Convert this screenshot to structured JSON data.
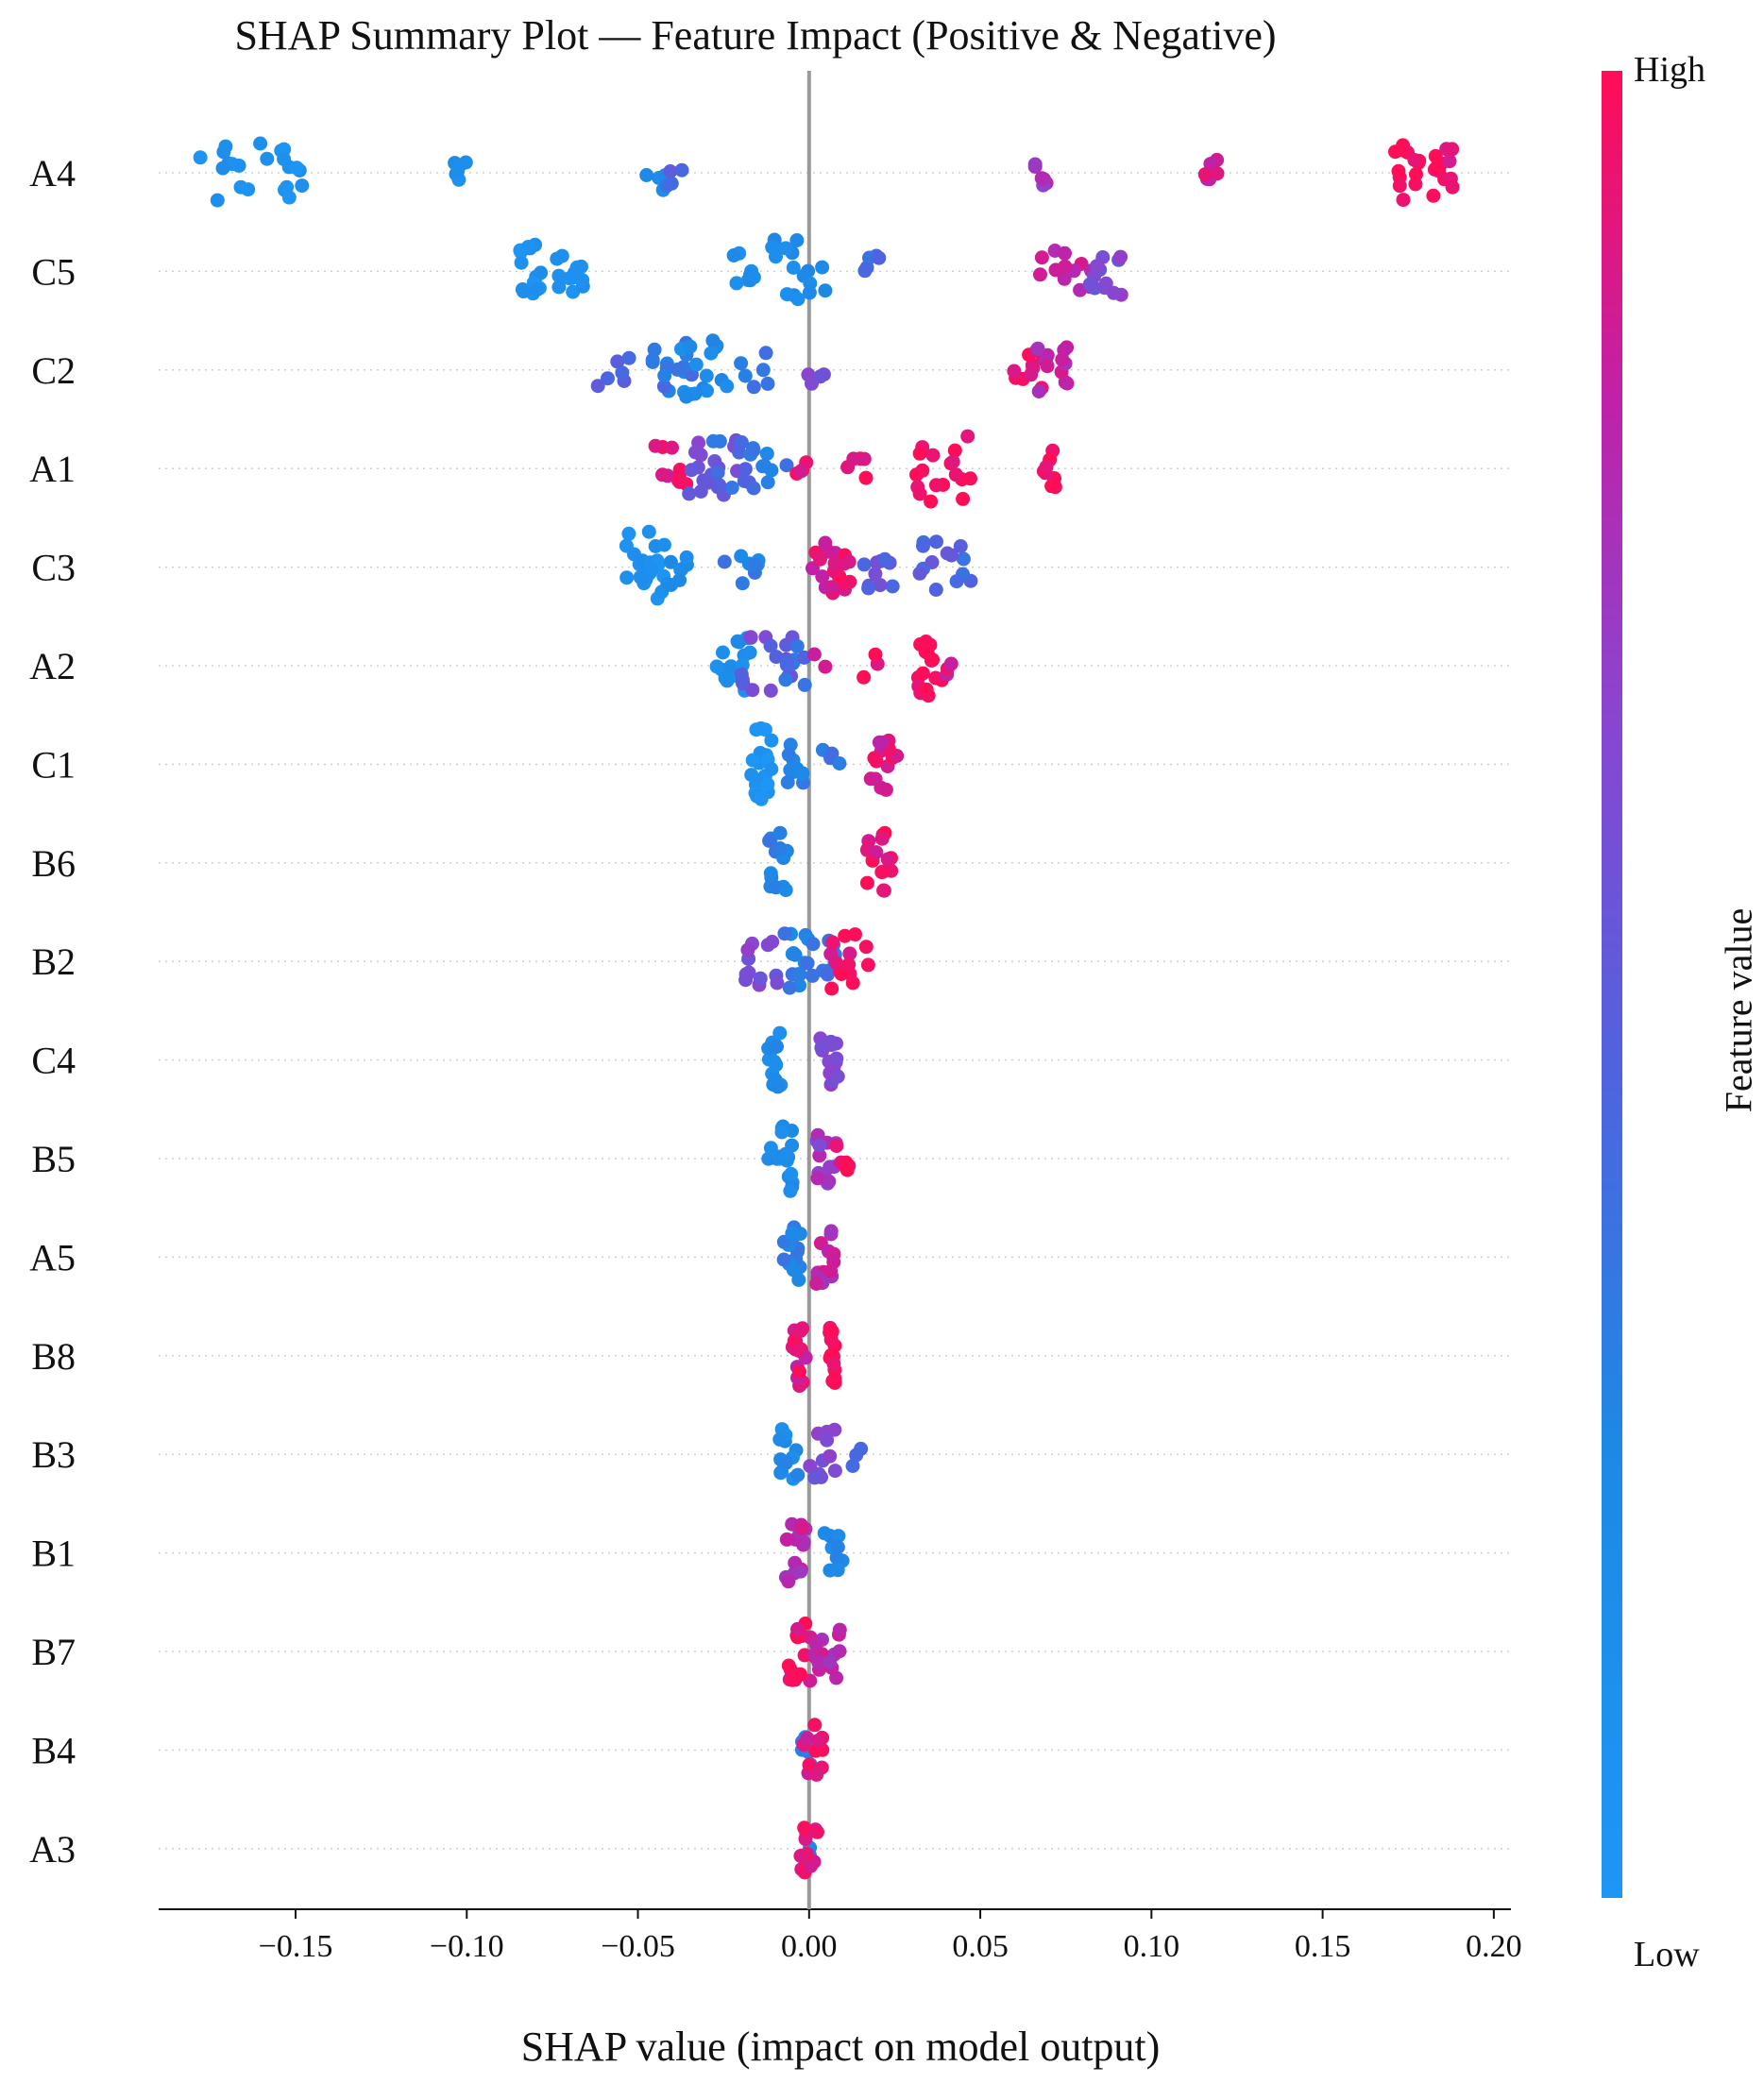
{
  "chart_data": {
    "type": "scatter",
    "subtype": "shap-beeswarm",
    "title": "SHAP Summary Plot — Feature Impact (Positive & Negative)",
    "xlabel": "SHAP value (impact on model output)",
    "xlim": [
      -0.19,
      0.205
    ],
    "xticks": [
      -0.15,
      -0.1,
      -0.05,
      0.0,
      0.05,
      0.1,
      0.15,
      0.2
    ],
    "xtick_labels": [
      "−0.15",
      "−0.10",
      "−0.05",
      "0.00",
      "0.05",
      "0.10",
      "0.15",
      "0.20"
    ],
    "colorbar": {
      "title": "Feature value",
      "high_label": "High",
      "low_label": "Low",
      "low_color": "#1e88e5",
      "mid_color": "#7b4fd6",
      "high_color": "#ff0d57"
    },
    "features": [
      {
        "name": "A4",
        "clusters": [
          [
            -0.163,
            0.1,
            22,
            0.015
          ],
          [
            -0.103,
            0.15,
            6,
            0.003
          ],
          [
            -0.045,
            0.2,
            6,
            0.004
          ],
          [
            -0.039,
            0.45,
            4,
            0.003
          ],
          [
            0.068,
            0.7,
            6,
            0.002
          ],
          [
            0.118,
            0.85,
            6,
            0.003
          ],
          [
            0.175,
            1.0,
            14,
            0.005
          ],
          [
            0.184,
            0.95,
            12,
            0.004
          ]
        ]
      },
      {
        "name": "C5",
        "clusters": [
          [
            -0.082,
            0.1,
            14,
            0.004
          ],
          [
            -0.07,
            0.1,
            12,
            0.004
          ],
          [
            -0.019,
            0.15,
            8,
            0.003
          ],
          [
            -0.003,
            0.2,
            18,
            0.008
          ],
          [
            0.018,
            0.45,
            5,
            0.003
          ],
          [
            0.075,
            0.8,
            12,
            0.008
          ],
          [
            0.087,
            0.6,
            12,
            0.005
          ]
        ]
      },
      {
        "name": "C2",
        "clusters": [
          [
            -0.057,
            0.5,
            6,
            0.005
          ],
          [
            -0.04,
            0.35,
            14,
            0.006
          ],
          [
            -0.032,
            0.2,
            16,
            0.008
          ],
          [
            -0.016,
            0.3,
            6,
            0.004
          ],
          [
            0.002,
            0.6,
            4,
            0.003
          ],
          [
            0.064,
            0.9,
            10,
            0.005
          ],
          [
            0.071,
            0.8,
            12,
            0.005
          ]
        ]
      },
      {
        "name": "A1",
        "clusters": [
          [
            -0.04,
            0.9,
            10,
            0.005
          ],
          [
            -0.028,
            0.6,
            18,
            0.008
          ],
          [
            -0.02,
            0.4,
            14,
            0.008
          ],
          [
            -0.01,
            0.3,
            6,
            0.005
          ],
          [
            0.0,
            0.9,
            4,
            0.004
          ],
          [
            0.014,
            0.95,
            5,
            0.003
          ],
          [
            0.04,
            1.0,
            18,
            0.009
          ],
          [
            0.07,
            0.95,
            8,
            0.002
          ]
        ]
      },
      {
        "name": "C3",
        "clusters": [
          [
            -0.048,
            0.1,
            22,
            0.006
          ],
          [
            -0.038,
            0.2,
            8,
            0.004
          ],
          [
            -0.02,
            0.3,
            8,
            0.006
          ],
          [
            0.006,
            0.9,
            14,
            0.005
          ],
          [
            0.01,
            0.95,
            8,
            0.003
          ],
          [
            0.02,
            0.5,
            10,
            0.006
          ],
          [
            0.04,
            0.45,
            14,
            0.008
          ]
        ]
      },
      {
        "name": "A2",
        "clusters": [
          [
            -0.022,
            0.15,
            14,
            0.005
          ],
          [
            -0.012,
            0.55,
            16,
            0.008
          ],
          [
            -0.004,
            0.4,
            8,
            0.004
          ],
          [
            0.003,
            0.8,
            2,
            0.002
          ],
          [
            0.018,
            0.95,
            3,
            0.003
          ],
          [
            0.035,
            1.0,
            16,
            0.004
          ],
          [
            0.042,
            0.9,
            3,
            0.002
          ]
        ]
      },
      {
        "name": "C1",
        "clusters": [
          [
            -0.014,
            0.05,
            26,
            0.003
          ],
          [
            -0.005,
            0.25,
            10,
            0.005
          ],
          [
            0.008,
            0.35,
            4,
            0.004
          ],
          [
            0.022,
            0.9,
            14,
            0.004
          ]
        ]
      },
      {
        "name": "B6",
        "clusters": [
          [
            -0.009,
            0.3,
            16,
            0.003
          ],
          [
            0.02,
            0.95,
            16,
            0.004
          ]
        ]
      },
      {
        "name": "B2",
        "clusters": [
          [
            -0.014,
            0.6,
            12,
            0.005
          ],
          [
            -0.004,
            0.3,
            14,
            0.004
          ],
          [
            0.004,
            0.4,
            10,
            0.004
          ],
          [
            0.012,
            0.95,
            14,
            0.006
          ]
        ]
      },
      {
        "name": "C4",
        "clusters": [
          [
            -0.01,
            0.2,
            14,
            0.002
          ],
          [
            0.006,
            0.6,
            14,
            0.003
          ]
        ]
      },
      {
        "name": "B5",
        "clusters": [
          [
            -0.008,
            0.2,
            18,
            0.004
          ],
          [
            0.005,
            0.7,
            14,
            0.003
          ],
          [
            0.01,
            0.95,
            6,
            0.002
          ]
        ]
      },
      {
        "name": "A5",
        "clusters": [
          [
            -0.005,
            0.3,
            16,
            0.003
          ],
          [
            0.005,
            0.8,
            14,
            0.003
          ]
        ]
      },
      {
        "name": "B8",
        "clusters": [
          [
            -0.003,
            0.9,
            16,
            0.002
          ],
          [
            0.007,
            1.0,
            14,
            0.001
          ]
        ]
      },
      {
        "name": "B3",
        "clusters": [
          [
            -0.006,
            0.2,
            12,
            0.003
          ],
          [
            0.004,
            0.6,
            12,
            0.004
          ],
          [
            0.014,
            0.4,
            3,
            0.002
          ]
        ]
      },
      {
        "name": "B1",
        "clusters": [
          [
            -0.004,
            0.8,
            16,
            0.003
          ],
          [
            0.007,
            0.2,
            10,
            0.003
          ]
        ]
      },
      {
        "name": "B7",
        "clusters": [
          [
            -0.002,
            0.95,
            16,
            0.004
          ],
          [
            0.005,
            0.8,
            14,
            0.004
          ]
        ]
      },
      {
        "name": "B4",
        "clusters": [
          [
            -0.001,
            0.3,
            6,
            0.002
          ],
          [
            0.001,
            0.9,
            12,
            0.003
          ]
        ]
      },
      {
        "name": "A3",
        "clusters": [
          [
            0.0,
            0.3,
            5,
            0.001
          ],
          [
            0.0,
            0.95,
            12,
            0.003
          ]
        ]
      }
    ]
  }
}
